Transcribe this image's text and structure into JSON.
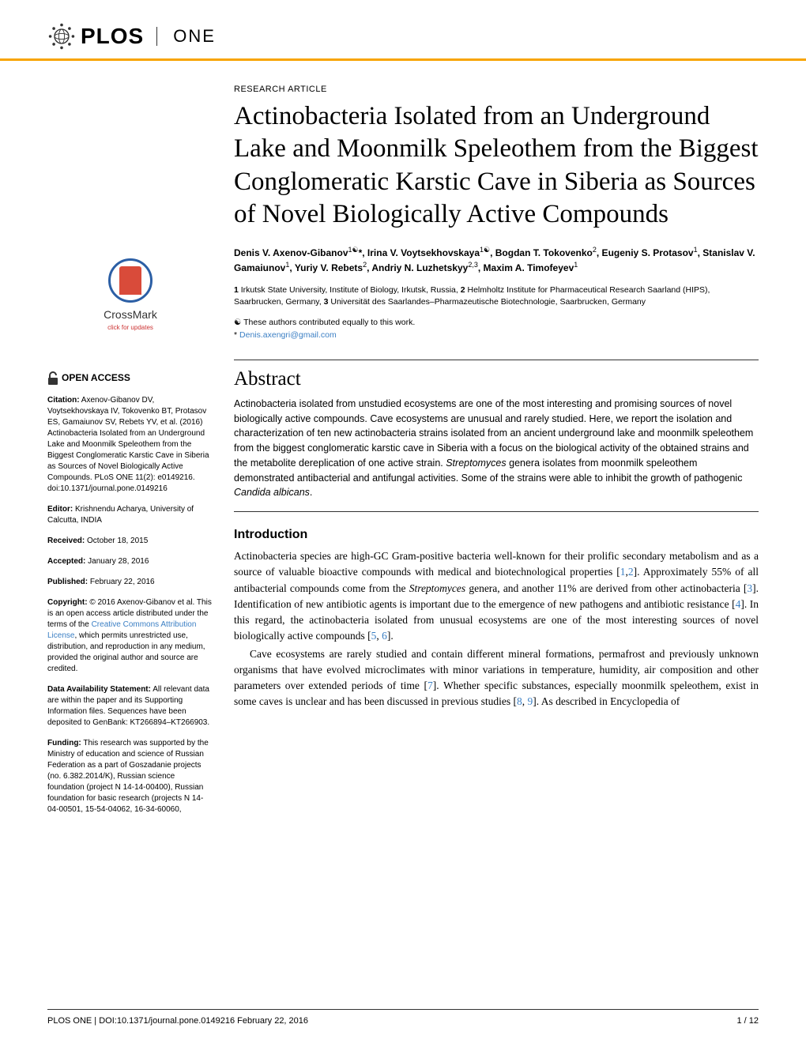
{
  "journal": {
    "name_primary": "PLOS",
    "name_secondary": "ONE"
  },
  "article": {
    "type_label": "RESEARCH ARTICLE",
    "title": "Actinobacteria Isolated from an Underground Lake and Moonmilk Speleothem from the Biggest Conglomeratic Karstic Cave in Siberia as Sources of Novel Biologically Active Compounds",
    "authors_html": "Denis V. Axenov-Gibanov<sup>1☯</sup>*, Irina V. Voytsekhovskaya<sup>1☯</sup>, Bogdan T. Tokovenko<sup>2</sup>, Eugeniy S. Protasov<sup>1</sup>, Stanislav V. Gamaiunov<sup>1</sup>, Yuriy V. Rebets<sup>2</sup>, Andriy N. Luzhetskyy<sup>2,3</sup>, Maxim A. Timofeyev<sup>1</sup>",
    "affiliations_html": "<b>1</b> Irkutsk State University, Institute of Biology, Irkutsk, Russia, <b>2</b> Helmholtz Institute for Pharmaceutical Research Saarland (HIPS), Saarbrucken, Germany, <b>3</b> Universität des Saarlandes–Pharmazeutische Biotechnologie, Saarbrucken, Germany",
    "contrib_note": "☯ These authors contributed equally to this work.",
    "corr_marker": "*",
    "corr_email": "Denis.axengri@gmail.com"
  },
  "abstract": {
    "heading": "Abstract",
    "text_html": "Actinobacteria isolated from unstudied ecosystems are one of the most interesting and promising sources of novel biologically active compounds. Cave ecosystems are unusual and rarely studied. Here, we report the isolation and characterization of ten new actinobacteria strains isolated from an ancient underground lake and moonmilk speleothem from the biggest conglomeratic karstic cave in Siberia with a focus on the biological activity of the obtained strains and the metabolite dereplication of one active strain. <i>Streptomyces</i> genera isolates from moonmilk speleothem demonstrated antibacterial and antifungal activities. Some of the strains were able to inhibit the growth of pathogenic <i>Candida albicans</i>."
  },
  "introduction": {
    "heading": "Introduction",
    "p1_html": "Actinobacteria species are high-GC Gram-positive bacteria well-known for their prolific secondary metabolism and as a source of valuable bioactive compounds with medical and biotechnological properties [<span class='ref'>1</span>,<span class='ref'>2</span>]. Approximately 55% of all antibacterial compounds come from the <i>Streptomyces</i> genera, and another 11% are derived from other actinobacteria [<span class='ref'>3</span>]. Identification of new antibiotic agents is important due to the emergence of new pathogens and antibiotic resistance [<span class='ref'>4</span>]. In this regard, the actinobacteria isolated from unusual ecosystems are one of the most interesting sources of novel biologically active compounds [<span class='ref'>5</span>, <span class='ref'>6</span>].",
    "p2_html": "Cave ecosystems are rarely studied and contain different mineral formations, permafrost and previously unknown organisms that have evolved microclimates with minor variations in temperature, humidity, air composition and other parameters over extended periods of time [<span class='ref'>7</span>]. Whether specific substances, especially moonmilk speleothem, exist in some caves is unclear and has been discussed in previous studies [<span class='ref'>8</span>, <span class='ref'>9</span>]. As described in Encyclopedia of"
  },
  "sidebar": {
    "crossmark_label": "CrossMark",
    "crossmark_sub": "click for updates",
    "open_access": "OPEN ACCESS",
    "citation_label": "Citation:",
    "citation_text": " Axenov-Gibanov DV, Voytsekhovskaya IV, Tokovenko BT, Protasov ES, Gamaiunov SV, Rebets YV, et al. (2016) Actinobacteria Isolated from an Underground Lake and Moonmilk Speleothem from the Biggest Conglomeratic Karstic Cave in Siberia as Sources of Novel Biologically Active Compounds. PLoS ONE 11(2): e0149216. doi:10.1371/journal.pone.0149216",
    "editor_label": "Editor:",
    "editor_text": " Krishnendu Acharya, University of Calcutta, INDIA",
    "received_label": "Received:",
    "received_text": " October 18, 2015",
    "accepted_label": "Accepted:",
    "accepted_text": " January 28, 2016",
    "published_label": "Published:",
    "published_text": " February 22, 2016",
    "copyright_label": "Copyright:",
    "copyright_text_pre": " © 2016 Axenov-Gibanov et al. This is an open access article distributed under the terms of the ",
    "copyright_link": "Creative Commons Attribution License",
    "copyright_text_post": ", which permits unrestricted use, distribution, and reproduction in any medium, provided the original author and source are credited.",
    "data_label": "Data Availability Statement:",
    "data_text": " All relevant data are within the paper and its Supporting Information files. Sequences have been deposited to GenBank: KT266894–KT266903.",
    "funding_label": "Funding:",
    "funding_text": " This research was supported by the Ministry of education and science of Russian Federation as a part of Goszadanie projects (no. 6.382.2014/K), Russian science foundation (project N 14-14-00400), Russian foundation for basic research (projects N 14-04-00501, 15-54-04062, 16-34-60060,"
  },
  "footer": {
    "left": "PLOS ONE | DOI:10.1371/journal.pone.0149216    February 22, 2016",
    "right": "1 / 12"
  },
  "colors": {
    "accent_rule": "#f8a400",
    "link": "#3b7fc4",
    "crossmark_ring": "#2c5fa5",
    "crossmark_fill": "#d94b3a"
  }
}
